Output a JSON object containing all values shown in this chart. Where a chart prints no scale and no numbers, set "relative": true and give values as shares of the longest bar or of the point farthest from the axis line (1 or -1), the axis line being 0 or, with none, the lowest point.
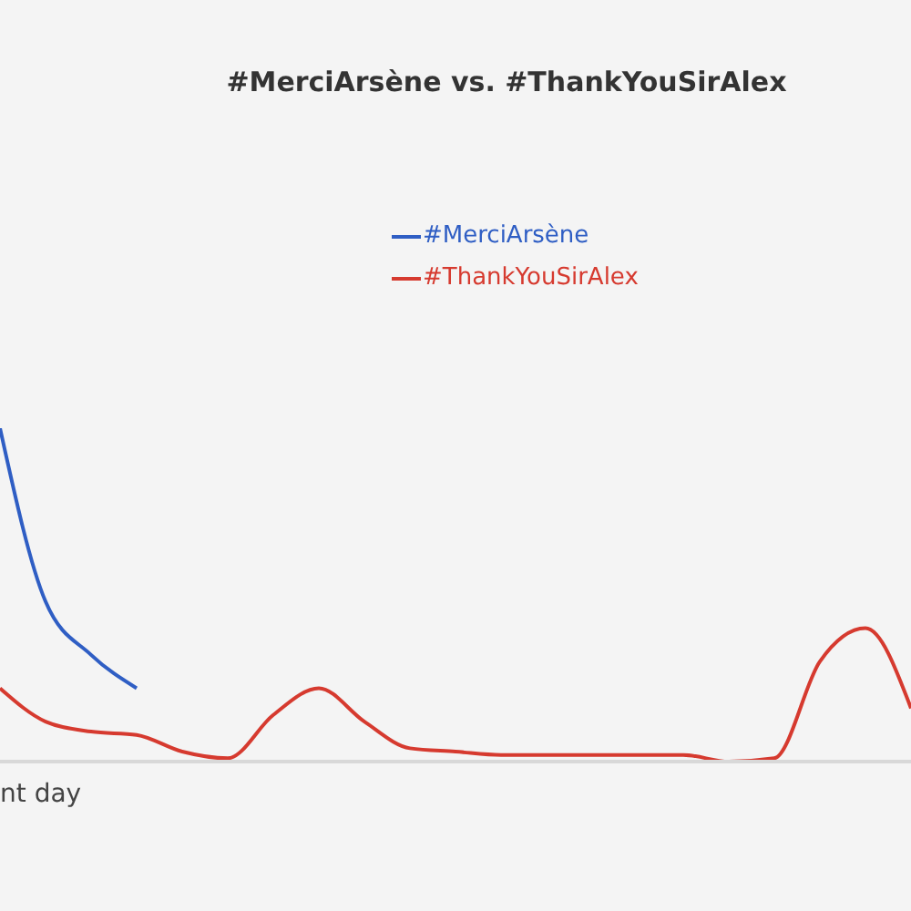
{
  "chart_data": {
    "type": "line",
    "title": "#MerciArsène vs. #ThankYouSirAlex",
    "xlabel": "nt day",
    "relative": true,
    "legend": "top",
    "categories": [
      null,
      null,
      null,
      null,
      null,
      null,
      null,
      null,
      null,
      null,
      null,
      null,
      null,
      null,
      null,
      null,
      null,
      null,
      null,
      null,
      null
    ],
    "series": [
      {
        "name": "#MerciArsène",
        "color": "#2f5ec4",
        "values": [
          1,
          0.48,
          0.32,
          0.22,
          null,
          null,
          null,
          null,
          null,
          null,
          null,
          null,
          null,
          null,
          null,
          null,
          null,
          null,
          null,
          null,
          null
        ]
      },
      {
        "name": "#ThankYouSirAlex",
        "color": "#d63a2f",
        "values": [
          0.22,
          0.12,
          0.09,
          0.08,
          0.03,
          0.01,
          0.14,
          0.22,
          0.12,
          0.04,
          0.03,
          0.02,
          0.02,
          0.02,
          0.02,
          0.02,
          0,
          0.01,
          0.3,
          0.4,
          0.16
        ]
      }
    ]
  }
}
